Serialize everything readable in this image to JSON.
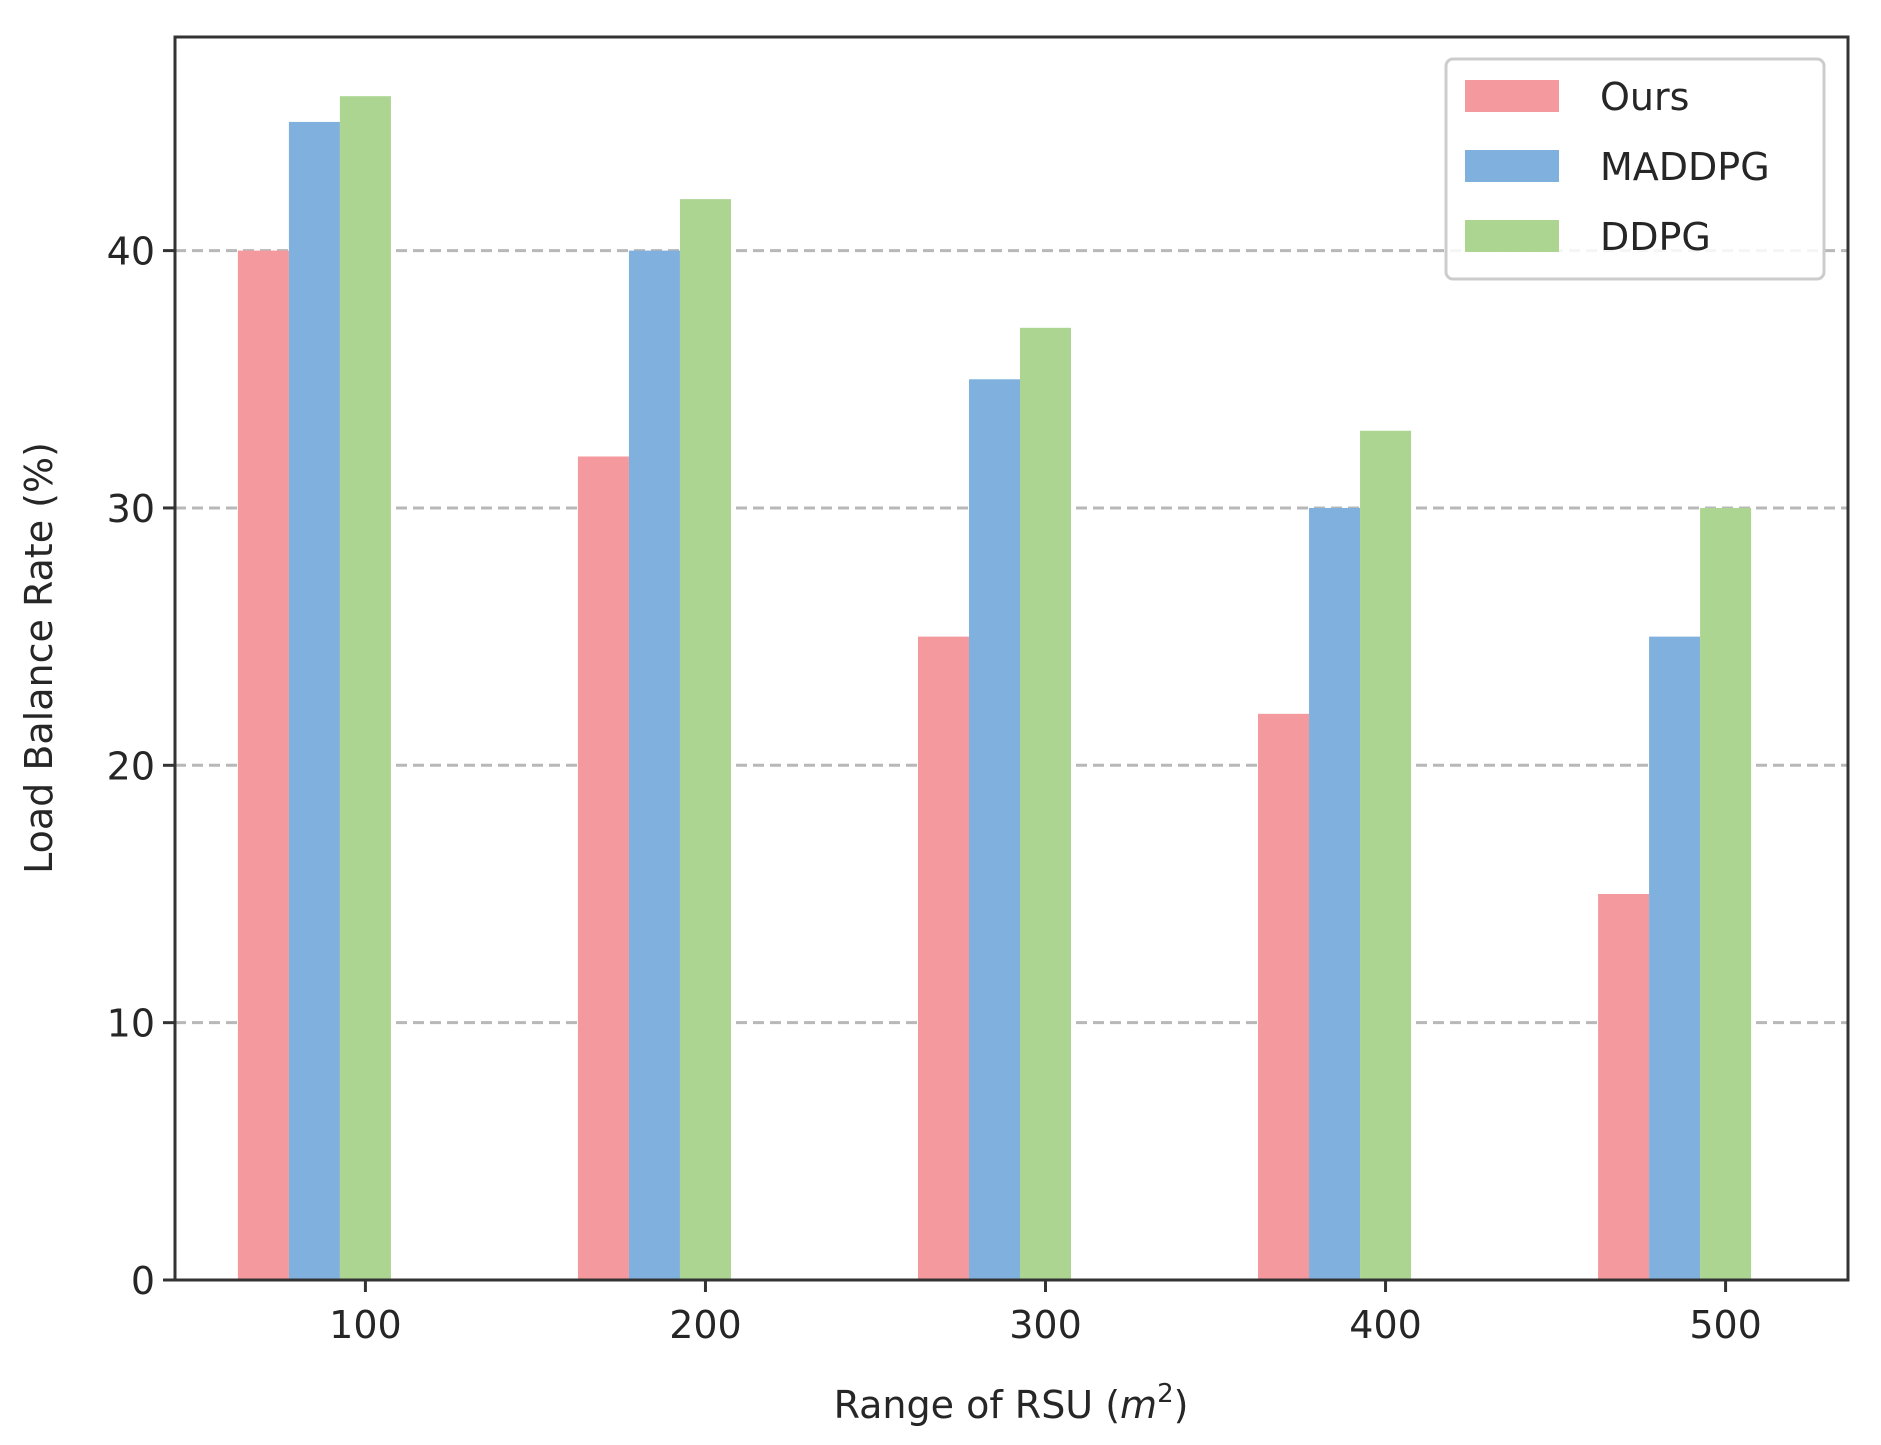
{
  "chart_data": {
    "type": "bar",
    "title": "",
    "xlabel": "Range of RSU (",
    "xlabel_unit_var": "m",
    "xlabel_unit_exp": "2",
    "xlabel_close": ")",
    "ylabel": "Load Balance Rate (%)",
    "categories": [
      "100",
      "200",
      "300",
      "400",
      "500"
    ],
    "ylim": [
      0,
      48.3
    ],
    "yticks": [
      0,
      10,
      20,
      30,
      40
    ],
    "ytick_labels": [
      "0",
      "10",
      "20",
      "30",
      "40"
    ],
    "grid": "horizontal-dashed",
    "legend_position": "top-right",
    "series": [
      {
        "name": "Ours",
        "color": "#f49a9e",
        "values": [
          40,
          32,
          25,
          22,
          15
        ]
      },
      {
        "name": "MADDPG",
        "color": "#7fb0de",
        "values": [
          45,
          40,
          35,
          30,
          25
        ]
      },
      {
        "name": "DDPG",
        "color": "#abd591",
        "values": [
          46,
          42,
          37,
          33,
          30
        ]
      }
    ]
  }
}
